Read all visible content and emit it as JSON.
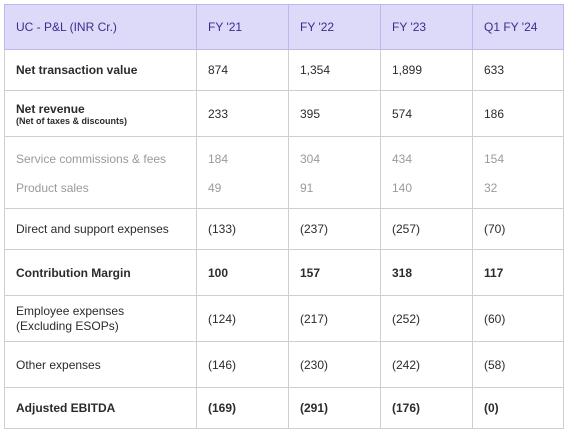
{
  "header": {
    "title": "UC - P&L (INR Cr.)",
    "columns": [
      "FY '21",
      "FY '22",
      "FY '23",
      "Q1 FY '24"
    ]
  },
  "rows": [
    {
      "label": "Net transaction value",
      "values": [
        "874",
        "1,354",
        "1,899",
        "633"
      ]
    },
    {
      "label": "Net revenue",
      "note": "(Net of taxes & discounts)",
      "values": [
        "233",
        "395",
        "574",
        "186"
      ]
    },
    {
      "label": "Service commissions & fees",
      "values": [
        "184",
        "304",
        "434",
        "154"
      ]
    },
    {
      "label": "Product sales",
      "values": [
        "49",
        "91",
        "140",
        "32"
      ]
    },
    {
      "label": "Direct and support expenses",
      "values": [
        "(133)",
        "(237)",
        "(257)",
        "(70)"
      ]
    },
    {
      "label": "Contribution Margin",
      "values": [
        "100",
        "157",
        "318",
        "117"
      ]
    },
    {
      "label": "Employee expenses",
      "label2": "(Excluding ESOPs)",
      "values": [
        "(124)",
        "(217)",
        "(252)",
        "(60)"
      ]
    },
    {
      "label": "Other expenses",
      "values": [
        "(146)",
        "(230)",
        "(242)",
        "(58)"
      ]
    },
    {
      "label": "Adjusted EBITDA",
      "values": [
        "(169)",
        "(291)",
        "(176)",
        "(0)"
      ]
    }
  ]
}
